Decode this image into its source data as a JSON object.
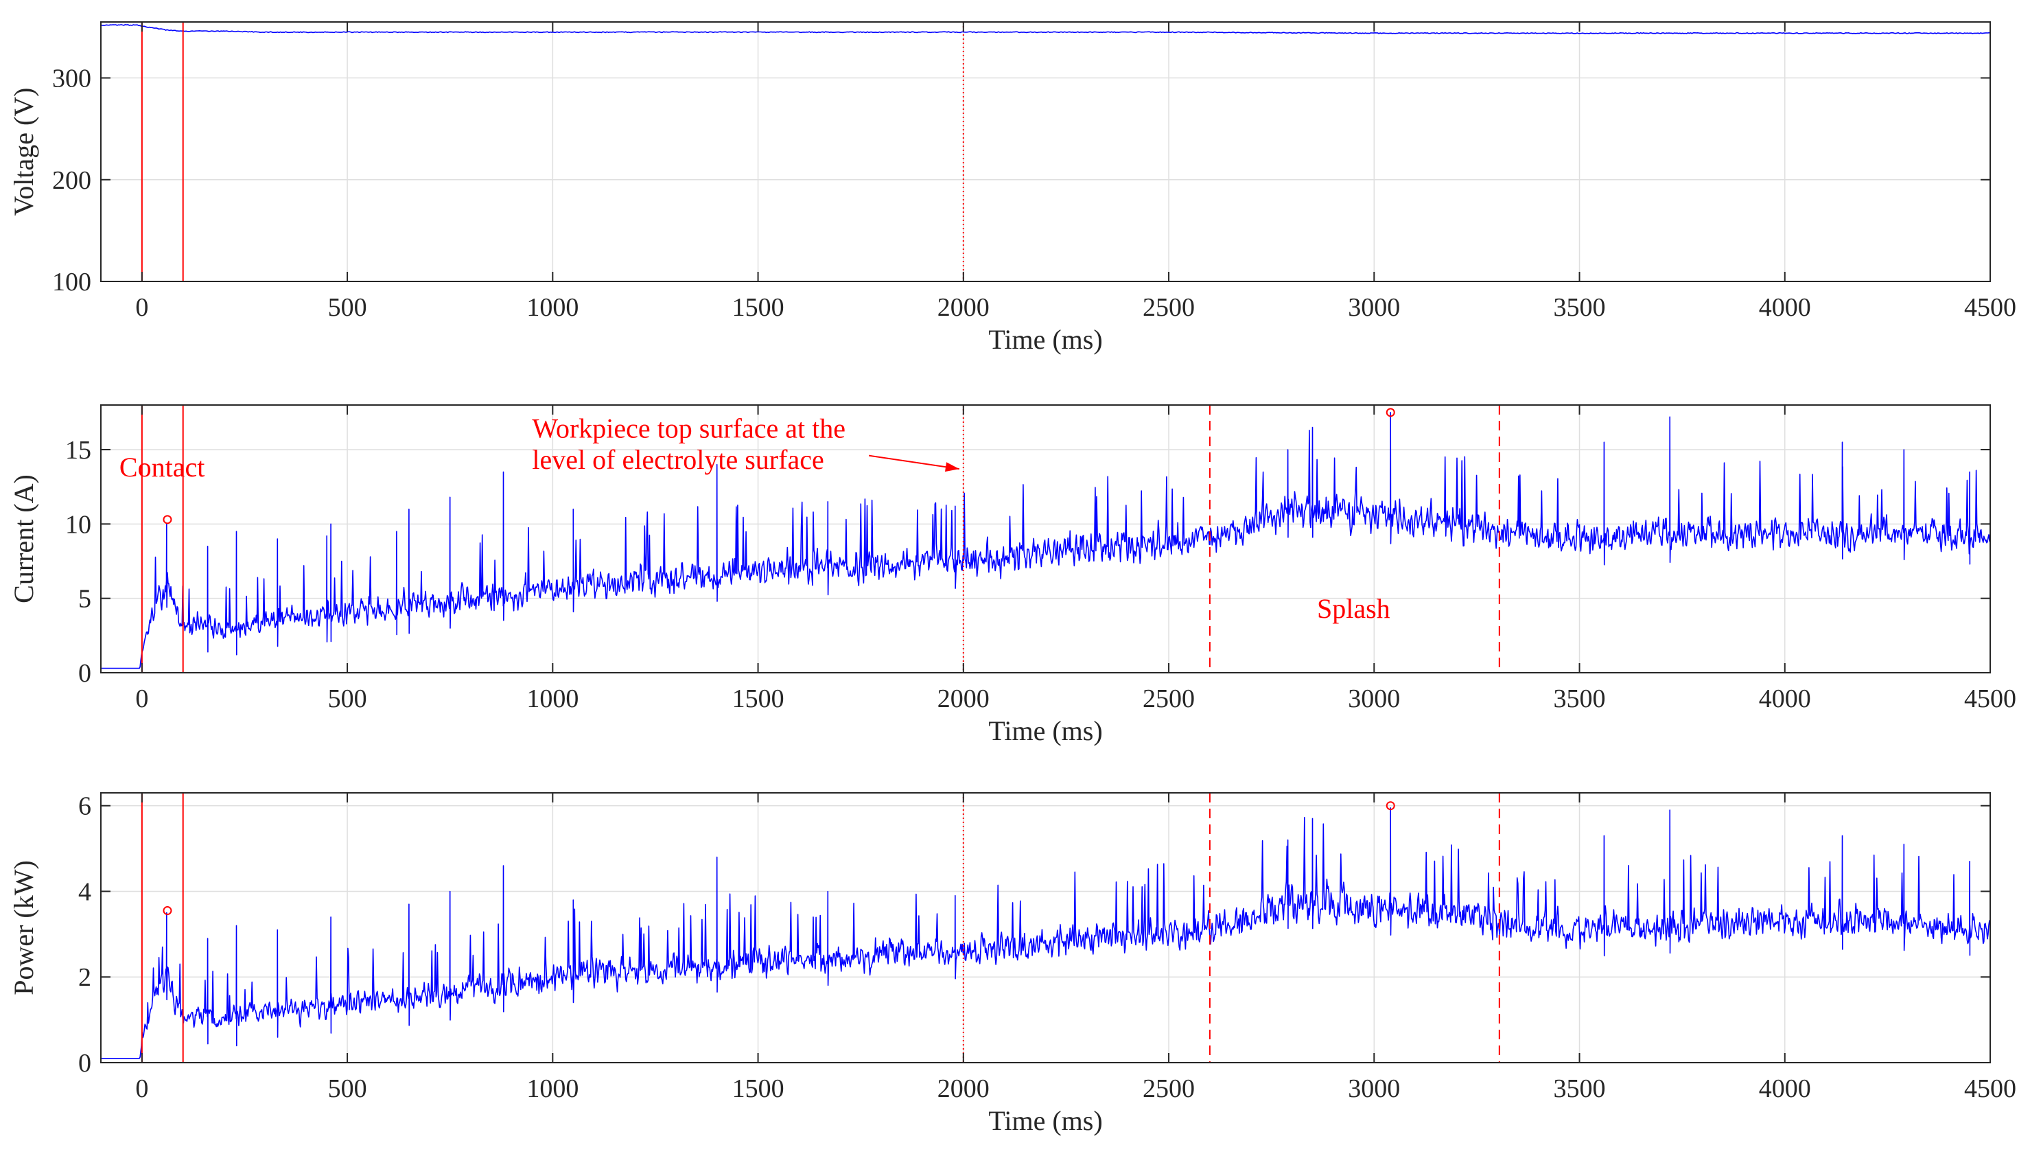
{
  "chart_data": [
    {
      "type": "line",
      "xlabel": "Time (ms)",
      "ylabel": "Voltage (V)",
      "xlim": [
        -100,
        4500
      ],
      "ylim": [
        100,
        355
      ],
      "xticks": [
        0,
        500,
        1000,
        1500,
        2000,
        2500,
        3000,
        3500,
        4000,
        4500
      ],
      "yticks": [
        100,
        200,
        300
      ],
      "grid": true,
      "series": [
        {
          "color": "#0000ff",
          "x": [
            -100,
            -10,
            0,
            30,
            60,
            100,
            200,
            300,
            500,
            1000,
            1500,
            2000,
            2500,
            3000,
            3500,
            4000,
            4500
          ],
          "values": [
            352,
            352,
            351,
            349,
            347,
            346,
            346,
            345,
            345,
            345,
            345,
            345,
            345,
            344,
            344,
            344,
            344
          ]
        }
      ],
      "vlines": [
        {
          "x": 0,
          "style": "solid",
          "color": "#ff0000"
        },
        {
          "x": 100,
          "style": "solid",
          "color": "#ff0000"
        },
        {
          "x": 2000,
          "style": "dotted",
          "color": "#ff0000"
        }
      ],
      "markers": [],
      "annotations": []
    },
    {
      "type": "line",
      "xlabel": "Time (ms)",
      "ylabel": "Current (A)",
      "xlim": [
        -100,
        4500
      ],
      "ylim": [
        0,
        18
      ],
      "xticks": [
        0,
        500,
        1000,
        1500,
        2000,
        2500,
        3000,
        3500,
        4000,
        4500
      ],
      "yticks": [
        0,
        5,
        10,
        15
      ],
      "grid": true,
      "series": [
        {
          "color": "#0000ff",
          "x": [
            -100,
            -5,
            0,
            20,
            40,
            60,
            80,
            100,
            150,
            200,
            300,
            500,
            700,
            1000,
            1500,
            2000,
            2300,
            2600,
            2800,
            3000,
            3200,
            3300,
            3500,
            4000,
            4300,
            4500
          ],
          "values": [
            0.3,
            0.3,
            1.5,
            3.5,
            5.0,
            6.2,
            4.5,
            3.0,
            3.3,
            2.8,
            3.5,
            4.0,
            4.6,
            5.8,
            6.8,
            7.5,
            8.3,
            9.0,
            11.0,
            10.6,
            10.0,
            9.3,
            9.0,
            9.5,
            9.4,
            9.0
          ],
          "noise": [
            0,
            0,
            0.4,
            1.2,
            1.6,
            1.8,
            1.6,
            1.3,
            1.4,
            1.4,
            1.5,
            1.7,
            1.8,
            2.0,
            2.1,
            2.1,
            2.2,
            2.3,
            2.6,
            2.4,
            2.3,
            2.1,
            2.0,
            2.1,
            2.0,
            2.0
          ],
          "spikes": [
            {
              "x": 60,
              "y": 10.0
            },
            {
              "x": 160,
              "y": 8.5
            },
            {
              "x": 230,
              "y": 9.5
            },
            {
              "x": 330,
              "y": 9.0
            },
            {
              "x": 450,
              "y": 9.2
            },
            {
              "x": 460,
              "y": 10.0
            },
            {
              "x": 620,
              "y": 9.5
            },
            {
              "x": 650,
              "y": 11.0
            },
            {
              "x": 750,
              "y": 11.8
            },
            {
              "x": 880,
              "y": 13.5
            },
            {
              "x": 1050,
              "y": 11.0
            },
            {
              "x": 1400,
              "y": 14.0
            },
            {
              "x": 1670,
              "y": 11.5
            },
            {
              "x": 1980,
              "y": 11.2
            },
            {
              "x": 2790,
              "y": 15.0
            },
            {
              "x": 2850,
              "y": 16.5
            },
            {
              "x": 3040,
              "y": 17.5
            },
            {
              "x": 3560,
              "y": 15.5
            },
            {
              "x": 3720,
              "y": 17.2
            },
            {
              "x": 4140,
              "y": 15.5
            },
            {
              "x": 4290,
              "y": 15.0
            },
            {
              "x": 4450,
              "y": 13.5
            }
          ]
        }
      ],
      "vlines": [
        {
          "x": 0,
          "style": "solid",
          "color": "#ff0000"
        },
        {
          "x": 100,
          "style": "solid",
          "color": "#ff0000"
        },
        {
          "x": 2000,
          "style": "dotted",
          "color": "#ff0000"
        },
        {
          "x": 2600,
          "style": "dashed",
          "color": "#ff0000"
        },
        {
          "x": 3305,
          "style": "dashed",
          "color": "#ff0000"
        }
      ],
      "markers": [
        {
          "x": 62,
          "y": 10.3
        },
        {
          "x": 3040,
          "y": 17.5
        }
      ],
      "annotations": [
        {
          "text": "Contact",
          "x": -55,
          "y": 13.2,
          "anchor": "start"
        },
        {
          "text": "Workpiece top surface at the",
          "x": 950,
          "y": 15.8,
          "anchor": "start"
        },
        {
          "text": "level of electrolyte surface",
          "x": 950,
          "y": 13.7,
          "anchor": "start"
        },
        {
          "text": "Splash",
          "x": 2950,
          "y": 3.7,
          "anchor": "middle"
        }
      ],
      "arrows": [
        {
          "x1": 1770,
          "y1": 14.6,
          "x2": 1990,
          "y2": 13.7
        }
      ]
    },
    {
      "type": "line",
      "xlabel": "Time (ms)",
      "ylabel": "Power (kW)",
      "xlim": [
        -100,
        4500
      ],
      "ylim": [
        0,
        6.3
      ],
      "xticks": [
        0,
        500,
        1000,
        1500,
        2000,
        2500,
        3000,
        3500,
        4000,
        4500
      ],
      "yticks": [
        0,
        2,
        4,
        6
      ],
      "grid": true,
      "series": [
        {
          "color": "#0000ff",
          "x": [
            -100,
            -5,
            0,
            20,
            40,
            60,
            80,
            100,
            150,
            200,
            300,
            500,
            700,
            1000,
            1500,
            2000,
            2300,
            2600,
            2800,
            3000,
            3200,
            3300,
            3500,
            4000,
            4300,
            4500
          ],
          "values": [
            0.1,
            0.1,
            0.5,
            1.2,
            1.7,
            2.1,
            1.5,
            1.0,
            1.1,
            0.95,
            1.2,
            1.35,
            1.55,
            2.0,
            2.35,
            2.6,
            2.85,
            3.1,
            3.8,
            3.65,
            3.45,
            3.2,
            3.1,
            3.3,
            3.25,
            3.1
          ],
          "noise": [
            0,
            0,
            0.15,
            0.4,
            0.55,
            0.6,
            0.55,
            0.45,
            0.48,
            0.48,
            0.5,
            0.58,
            0.62,
            0.7,
            0.72,
            0.72,
            0.75,
            0.78,
            0.9,
            0.82,
            0.78,
            0.72,
            0.7,
            0.72,
            0.7,
            0.7
          ],
          "spikes": [
            {
              "x": 60,
              "y": 3.5
            },
            {
              "x": 160,
              "y": 2.9
            },
            {
              "x": 230,
              "y": 3.2
            },
            {
              "x": 330,
              "y": 3.1
            },
            {
              "x": 460,
              "y": 3.4
            },
            {
              "x": 650,
              "y": 3.7
            },
            {
              "x": 750,
              "y": 4.0
            },
            {
              "x": 880,
              "y": 4.6
            },
            {
              "x": 1050,
              "y": 3.8
            },
            {
              "x": 1400,
              "y": 4.8
            },
            {
              "x": 1670,
              "y": 4.0
            },
            {
              "x": 1980,
              "y": 3.9
            },
            {
              "x": 2790,
              "y": 5.2
            },
            {
              "x": 2850,
              "y": 5.7
            },
            {
              "x": 3040,
              "y": 5.95
            },
            {
              "x": 3560,
              "y": 5.3
            },
            {
              "x": 3720,
              "y": 5.9
            },
            {
              "x": 4140,
              "y": 5.3
            },
            {
              "x": 4290,
              "y": 5.1
            },
            {
              "x": 4450,
              "y": 4.7
            }
          ]
        }
      ],
      "vlines": [
        {
          "x": 0,
          "style": "solid",
          "color": "#ff0000"
        },
        {
          "x": 100,
          "style": "solid",
          "color": "#ff0000"
        },
        {
          "x": 2000,
          "style": "dotted",
          "color": "#ff0000"
        },
        {
          "x": 2600,
          "style": "dashed",
          "color": "#ff0000"
        },
        {
          "x": 3305,
          "style": "dashed",
          "color": "#ff0000"
        }
      ],
      "markers": [
        {
          "x": 62,
          "y": 3.55
        },
        {
          "x": 3040,
          "y": 6.0
        }
      ],
      "annotations": []
    }
  ]
}
